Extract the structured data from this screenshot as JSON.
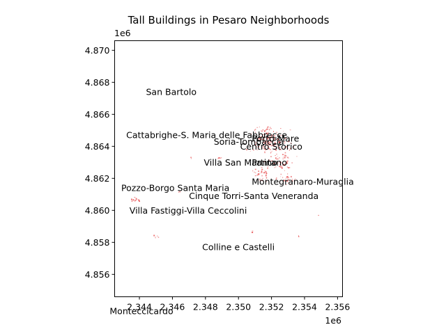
{
  "chart_data": {
    "type": "scatter",
    "title": "Tall Buildings in Pesaro Neighborhoods",
    "x_offset_label": "1e6",
    "y_offset_label": "1e6",
    "xlim": [
      2.3425,
      2.3563
    ],
    "ylim": [
      4.8546,
      4.8706
    ],
    "x_ticks": [
      {
        "value": 2.344,
        "label": "2.344"
      },
      {
        "value": 2.346,
        "label": "2.346"
      },
      {
        "value": 2.348,
        "label": "2.348"
      },
      {
        "value": 2.35,
        "label": "2.350"
      },
      {
        "value": 2.352,
        "label": "2.352"
      },
      {
        "value": 2.354,
        "label": "2.354"
      },
      {
        "value": 2.356,
        "label": "2.356"
      }
    ],
    "y_ticks": [
      {
        "value": 4.856,
        "label": "4.856"
      },
      {
        "value": 4.858,
        "label": "4.858"
      },
      {
        "value": 4.86,
        "label": "4.860"
      },
      {
        "value": 4.862,
        "label": "4.862"
      },
      {
        "value": 4.864,
        "label": "4.864"
      },
      {
        "value": 4.866,
        "label": "4.866"
      },
      {
        "value": 4.868,
        "label": "4.868"
      },
      {
        "value": 4.87,
        "label": "4.870"
      }
    ],
    "neighborhoods": [
      {
        "name": "San Bartolo",
        "x": 2.3444,
        "y": 4.8674,
        "anchor": "start"
      },
      {
        "name": "Cattabrighe-S. Maria delle Fabbrecce",
        "x": 2.3432,
        "y": 4.8647,
        "anchor": "start"
      },
      {
        "name": "Soria-Tombaccia",
        "x": 2.3485,
        "y": 4.8643,
        "anchor": "start"
      },
      {
        "name": "Porto-Mare",
        "x": 2.3508,
        "y": 4.8645,
        "anchor": "start"
      },
      {
        "name": "Centro Storico",
        "x": 2.3501,
        "y": 4.864,
        "anchor": "start"
      },
      {
        "name": "Villa San Martino",
        "x": 2.3479,
        "y": 4.863,
        "anchor": "start"
      },
      {
        "name": "Pantano",
        "x": 2.3508,
        "y": 4.863,
        "anchor": "start"
      },
      {
        "name": "Montegranaro-Muraglia",
        "x": 2.3508,
        "y": 4.8618,
        "anchor": "start"
      },
      {
        "name": "Pozzo-Borgo Santa Maria",
        "x": 2.3429,
        "y": 4.8614,
        "anchor": "start"
      },
      {
        "name": "Cinque Torri-Santa Veneranda",
        "x": 2.347,
        "y": 4.8609,
        "anchor": "start"
      },
      {
        "name": "Villa Fastiggi-Villa Ceccolini",
        "x": 2.3434,
        "y": 4.86,
        "anchor": "start"
      },
      {
        "name": "Colline e Castelli",
        "x": 2.3478,
        "y": 4.8577,
        "anchor": "start"
      },
      {
        "name": "Monteccicardo",
        "x": 2.3422,
        "y": 4.8537,
        "anchor": "start"
      }
    ],
    "building_color": "#e8595a",
    "building_clusters": [
      {
        "x": 2.352,
        "y": 4.8642,
        "sx": 0.0009,
        "sy": 0.00075,
        "n": 140
      },
      {
        "x": 2.3527,
        "y": 4.863,
        "sx": 0.0006,
        "sy": 0.00045,
        "n": 45
      },
      {
        "x": 2.3515,
        "y": 4.8623,
        "sx": 0.00045,
        "sy": 0.00035,
        "n": 35
      },
      {
        "x": 2.353,
        "y": 4.8619,
        "sx": 0.0005,
        "sy": 0.00025,
        "n": 25
      },
      {
        "x": 2.3515,
        "y": 4.8647,
        "sx": 0.00045,
        "sy": 0.00045,
        "n": 30
      },
      {
        "x": 2.3488,
        "y": 4.8633,
        "sx": 0.0001,
        "sy": 8e-05,
        "n": 6
      },
      {
        "x": 2.3471,
        "y": 4.8633,
        "sx": 4e-05,
        "sy": 4e-05,
        "n": 3
      },
      {
        "x": 2.3437,
        "y": 4.8607,
        "sx": 0.0003,
        "sy": 0.0001,
        "n": 12
      },
      {
        "x": 2.3464,
        "y": 4.8612,
        "sx": 8e-05,
        "sy": 8e-05,
        "n": 4
      },
      {
        "x": 2.3449,
        "y": 4.8584,
        "sx": 0.00015,
        "sy": 6e-05,
        "n": 4
      },
      {
        "x": 2.3508,
        "y": 4.8587,
        "sx": 5e-05,
        "sy": 5e-05,
        "n": 2
      },
      {
        "x": 2.3536,
        "y": 4.8584,
        "sx": 5e-05,
        "sy": 5e-05,
        "n": 2
      },
      {
        "x": 2.3548,
        "y": 4.8597,
        "sx": 3e-05,
        "sy": 3e-05,
        "n": 1
      },
      {
        "x": 2.3535,
        "y": 4.8634,
        "sx": 3e-05,
        "sy": 3e-05,
        "n": 1
      }
    ]
  }
}
